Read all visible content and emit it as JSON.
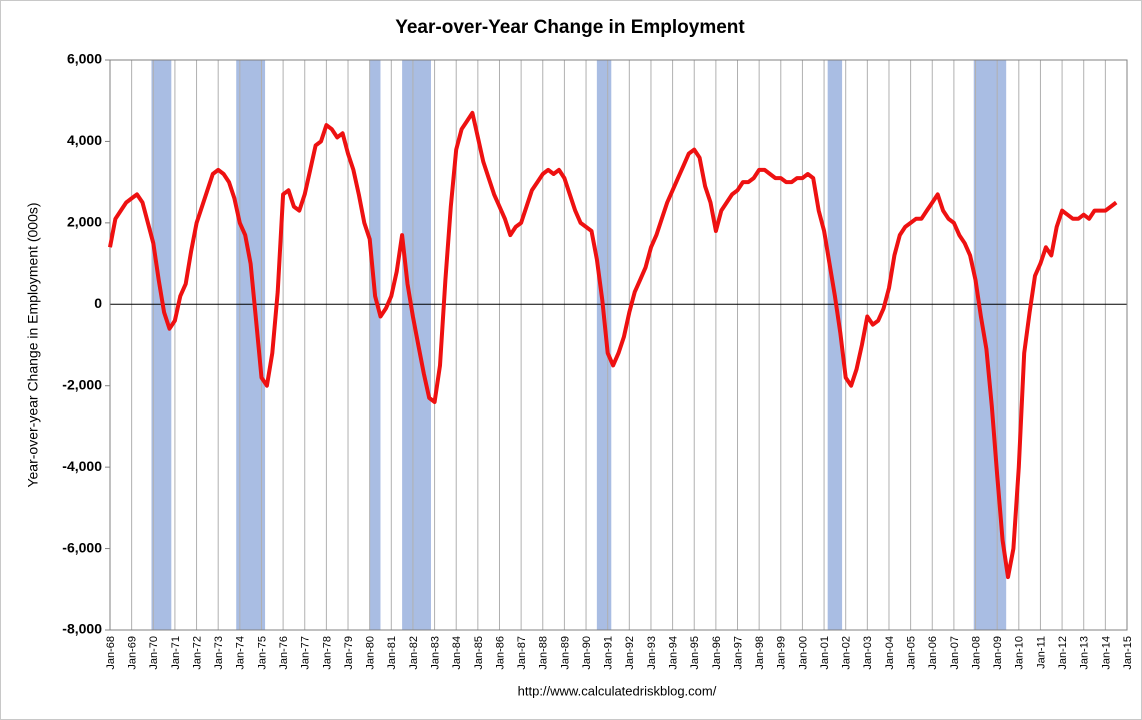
{
  "chart_data": {
    "type": "line",
    "title": "Year-over-Year Change in Employment",
    "y_label": "Year-over-year Change in Employment (000s)",
    "source": "http://www.calculatedriskblog.com/",
    "x": [
      "Jan-68",
      "Apr-68",
      "Jul-68",
      "Oct-68",
      "Jan-69",
      "Apr-69",
      "Jul-69",
      "Oct-69",
      "Jan-70",
      "Apr-70",
      "Jul-70",
      "Oct-70",
      "Jan-71",
      "Apr-71",
      "Jul-71",
      "Oct-71",
      "Jan-72",
      "Apr-72",
      "Jul-72",
      "Oct-72",
      "Jan-73",
      "Apr-73",
      "Jul-73",
      "Oct-73",
      "Jan-74",
      "Apr-74",
      "Jul-74",
      "Oct-74",
      "Jan-75",
      "Apr-75",
      "Jul-75",
      "Oct-75",
      "Jan-76",
      "Apr-76",
      "Jul-76",
      "Oct-76",
      "Jan-77",
      "Apr-77",
      "Jul-77",
      "Oct-77",
      "Jan-78",
      "Apr-78",
      "Jul-78",
      "Oct-78",
      "Jan-79",
      "Apr-79",
      "Jul-79",
      "Oct-79",
      "Jan-80",
      "Apr-80",
      "Jul-80",
      "Oct-80",
      "Jan-81",
      "Apr-81",
      "Jul-81",
      "Oct-81",
      "Jan-82",
      "Apr-82",
      "Jul-82",
      "Oct-82",
      "Jan-83",
      "Apr-83",
      "Jul-83",
      "Oct-83",
      "Jan-84",
      "Apr-84",
      "Jul-84",
      "Oct-84",
      "Jan-85",
      "Apr-85",
      "Jul-85",
      "Oct-85",
      "Jan-86",
      "Apr-86",
      "Jul-86",
      "Oct-86",
      "Jan-87",
      "Apr-87",
      "Jul-87",
      "Oct-87",
      "Jan-88",
      "Apr-88",
      "Jul-88",
      "Oct-88",
      "Jan-89",
      "Apr-89",
      "Jul-89",
      "Oct-89",
      "Jan-90",
      "Apr-90",
      "Jul-90",
      "Oct-90",
      "Jan-91",
      "Apr-91",
      "Jul-91",
      "Oct-91",
      "Jan-92",
      "Apr-92",
      "Jul-92",
      "Oct-92",
      "Jan-93",
      "Apr-93",
      "Jul-93",
      "Oct-93",
      "Jan-94",
      "Apr-94",
      "Jul-94",
      "Oct-94",
      "Jan-95",
      "Apr-95",
      "Jul-95",
      "Oct-95",
      "Jan-96",
      "Apr-96",
      "Jul-96",
      "Oct-96",
      "Jan-97",
      "Apr-97",
      "Jul-97",
      "Oct-97",
      "Jan-98",
      "Apr-98",
      "Jul-98",
      "Oct-98",
      "Jan-99",
      "Apr-99",
      "Jul-99",
      "Oct-99",
      "Jan-00",
      "Apr-00",
      "Jul-00",
      "Oct-00",
      "Jan-01",
      "Apr-01",
      "Jul-01",
      "Oct-01",
      "Jan-02",
      "Apr-02",
      "Jul-02",
      "Oct-02",
      "Jan-03",
      "Apr-03",
      "Jul-03",
      "Oct-03",
      "Jan-04",
      "Apr-04",
      "Jul-04",
      "Oct-04",
      "Jan-05",
      "Apr-05",
      "Jul-05",
      "Oct-05",
      "Jan-06",
      "Apr-06",
      "Jul-06",
      "Oct-06",
      "Jan-07",
      "Apr-07",
      "Jul-07",
      "Oct-07",
      "Jan-08",
      "Apr-08",
      "Jul-08",
      "Oct-08",
      "Jan-09",
      "Apr-09",
      "Jul-09",
      "Oct-09",
      "Jan-10",
      "Apr-10",
      "Jul-10",
      "Oct-10",
      "Jan-11",
      "Apr-11",
      "Jul-11",
      "Oct-11",
      "Jan-12",
      "Apr-12",
      "Jul-12",
      "Oct-12",
      "Jan-13",
      "Apr-13",
      "Jul-13",
      "Oct-13",
      "Jan-14",
      "Apr-14",
      "Jul-14"
    ],
    "series": [
      {
        "color": "#ee1111",
        "values": [
          1400,
          2100,
          2300,
          2500,
          2600,
          2700,
          2500,
          2000,
          1500,
          600,
          -200,
          -600,
          -400,
          200,
          500,
          1300,
          2000,
          2400,
          2800,
          3200,
          3300,
          3200,
          3000,
          2600,
          2000,
          1700,
          1000,
          -400,
          -1800,
          -2000,
          -1200,
          300,
          2700,
          2800,
          2400,
          2300,
          2700,
          3300,
          3900,
          4000,
          4400,
          4300,
          4100,
          4200,
          3700,
          3300,
          2700,
          2000,
          1600,
          200,
          -300,
          -100,
          200,
          800,
          1700,
          500,
          -300,
          -1000,
          -1700,
          -2300,
          -2400,
          -1500,
          600,
          2400,
          3800,
          4300,
          4500,
          4700,
          4100,
          3500,
          3100,
          2700,
          2400,
          2100,
          1700,
          1900,
          2000,
          2400,
          2800,
          3000,
          3200,
          3300,
          3200,
          3300,
          3100,
          2700,
          2300,
          2000,
          1900,
          1800,
          1100,
          100,
          -1200,
          -1500,
          -1200,
          -800,
          -200,
          300,
          600,
          900,
          1400,
          1700,
          2100,
          2500,
          2800,
          3100,
          3400,
          3700,
          3800,
          3600,
          2900,
          2500,
          1800,
          2300,
          2500,
          2700,
          2800,
          3000,
          3000,
          3100,
          3300,
          3300,
          3200,
          3100,
          3100,
          3000,
          3000,
          3100,
          3100,
          3200,
          3100,
          2300,
          1800,
          1000,
          200,
          -700,
          -1800,
          -2000,
          -1600,
          -1000,
          -300,
          -500,
          -400,
          -100,
          400,
          1200,
          1700,
          1900,
          2000,
          2100,
          2100,
          2300,
          2500,
          2700,
          2300,
          2100,
          2000,
          1700,
          1500,
          1200,
          600,
          -300,
          -1100,
          -2500,
          -4200,
          -5800,
          -6700,
          -6000,
          -4000,
          -1200,
          -200,
          700,
          1000,
          1400,
          1200,
          1900,
          2300,
          2200,
          2100,
          2100,
          2200,
          2100,
          2300,
          2300,
          2300,
          2400,
          2500
        ]
      }
    ],
    "recessions": [
      {
        "start": "Dec-69",
        "end": "Nov-70"
      },
      {
        "start": "Nov-73",
        "end": "Mar-75"
      },
      {
        "start": "Jan-80",
        "end": "Jul-80"
      },
      {
        "start": "Jul-81",
        "end": "Nov-82"
      },
      {
        "start": "Jul-90",
        "end": "Mar-91"
      },
      {
        "start": "Mar-01",
        "end": "Nov-01"
      },
      {
        "start": "Dec-07",
        "end": "Jun-09"
      }
    ],
    "recession_color": "#a9bde3",
    "xlim": [
      "Jan-68",
      "Jan-15"
    ],
    "xticks": [
      "Jan-68",
      "Jan-69",
      "Jan-70",
      "Jan-71",
      "Jan-72",
      "Jan-73",
      "Jan-74",
      "Jan-75",
      "Jan-76",
      "Jan-77",
      "Jan-78",
      "Jan-79",
      "Jan-80",
      "Jan-81",
      "Jan-82",
      "Jan-83",
      "Jan-84",
      "Jan-85",
      "Jan-86",
      "Jan-87",
      "Jan-88",
      "Jan-89",
      "Jan-90",
      "Jan-91",
      "Jan-92",
      "Jan-93",
      "Jan-94",
      "Jan-95",
      "Jan-96",
      "Jan-97",
      "Jan-98",
      "Jan-99",
      "Jan-00",
      "Jan-01",
      "Jan-02",
      "Jan-03",
      "Jan-04",
      "Jan-05",
      "Jan-06",
      "Jan-07",
      "Jan-08",
      "Jan-09",
      "Jan-10",
      "Jan-11",
      "Jan-12",
      "Jan-13",
      "Jan-14",
      "Jan-15"
    ],
    "ylim": [
      -8000,
      6000
    ],
    "yticks": [
      {
        "value": -8000,
        "label": "-8,000"
      },
      {
        "value": -6000,
        "label": "-6,000"
      },
      {
        "value": -4000,
        "label": "-4,000"
      },
      {
        "value": -2000,
        "label": "-2,000"
      },
      0,
      {
        "value": 2000,
        "label": "2,000"
      },
      {
        "value": 4000,
        "label": "4,000"
      },
      {
        "value": 6000,
        "label": "6,000"
      }
    ],
    "grid": true
  }
}
